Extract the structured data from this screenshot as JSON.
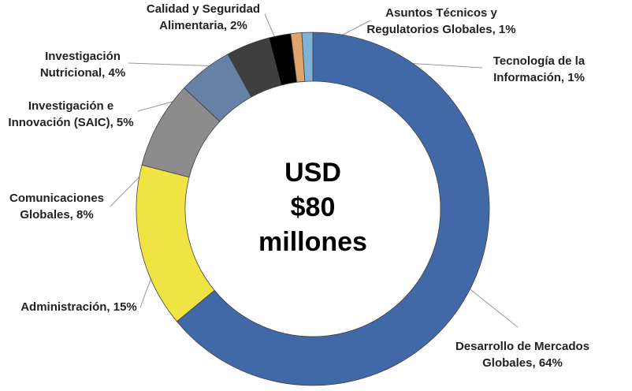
{
  "chart_data": {
    "type": "donut",
    "center_label": [
      "USD",
      "$80",
      "millones"
    ],
    "values": [
      64,
      15,
      8,
      5,
      4,
      2,
      1,
      1
    ],
    "value_labels": [
      [
        "Desarrollo de Mercados",
        "Globales, 64%"
      ],
      [
        "Administración, 15%"
      ],
      [
        "Comunicaciones",
        "Globales, 8%"
      ],
      [
        "Investigación e",
        "Innovación (SAIC), 5%"
      ],
      [
        "Investigación",
        "Nutricional, 4%"
      ],
      [
        "Calidad y Seguridad",
        "Alimentaria, 2%"
      ],
      [
        "Asuntos Técnicos y",
        "Regulatorios Globales, 1%"
      ],
      [
        "Tecnología de la",
        "Información, 1%"
      ]
    ],
    "colors": [
      "#4169a8",
      "#f0e444",
      "#8c8c8c",
      "#6680a6",
      "#3f3f3f",
      "#000000",
      "#e0a46c",
      "#7fb2d6"
    ]
  }
}
